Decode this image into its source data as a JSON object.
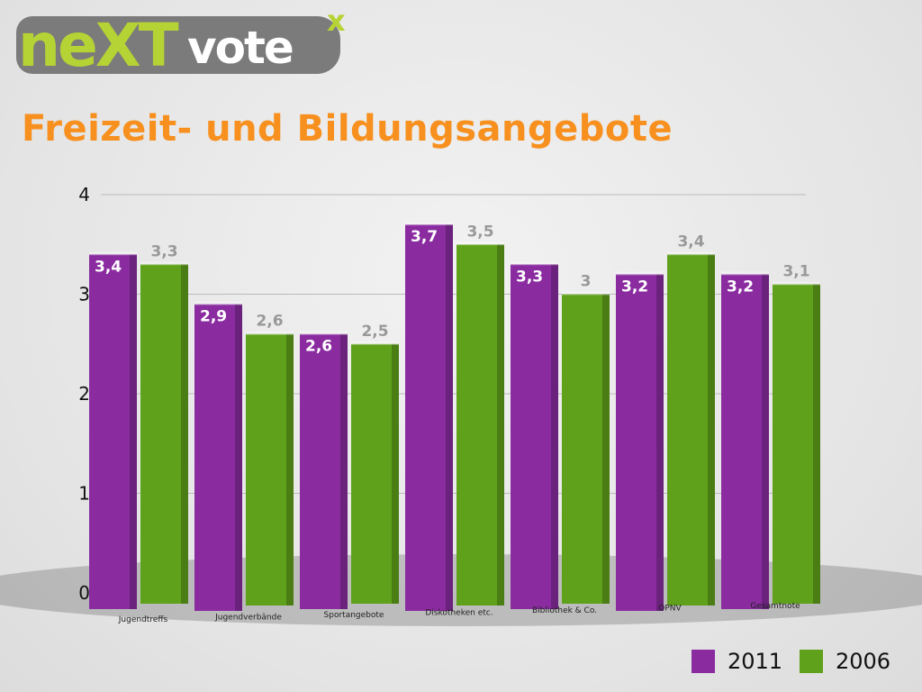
{
  "logo": {
    "part1": "neXT",
    "part2": "vote",
    "sup": "x"
  },
  "title": "Freizeit- und Bildungsangebote",
  "colors": {
    "s2011": "#8a2ca0",
    "s2006": "#5fa11a"
  },
  "chart_data": {
    "type": "bar",
    "title": "Freizeit- und Bildungsangebote",
    "categories": [
      "Jugendtreffs",
      "Jugendverbände",
      "Sportangebote",
      "Diskotheken etc.",
      "Bibliothek & Co.",
      "OPNV",
      "Gesamtnote"
    ],
    "series": [
      {
        "name": "2011",
        "values": [
          3.4,
          2.9,
          2.6,
          3.7,
          3.3,
          3.2,
          3.2
        ],
        "labels": [
          "3,4",
          "2,9",
          "2,6",
          "3,7",
          "3,3",
          "3,2",
          "3,2"
        ]
      },
      {
        "name": "2006",
        "values": [
          3.3,
          2.6,
          2.5,
          3.5,
          3.0,
          3.4,
          3.1
        ],
        "labels": [
          "3,3",
          "2,6",
          "2,5",
          "3,5",
          "3",
          "3,4",
          "3,1"
        ]
      }
    ],
    "ylim": [
      0,
      4
    ],
    "yticks": [
      "0",
      "1",
      "2",
      "3",
      "4"
    ],
    "grid": true,
    "legend": "bottom-right"
  }
}
